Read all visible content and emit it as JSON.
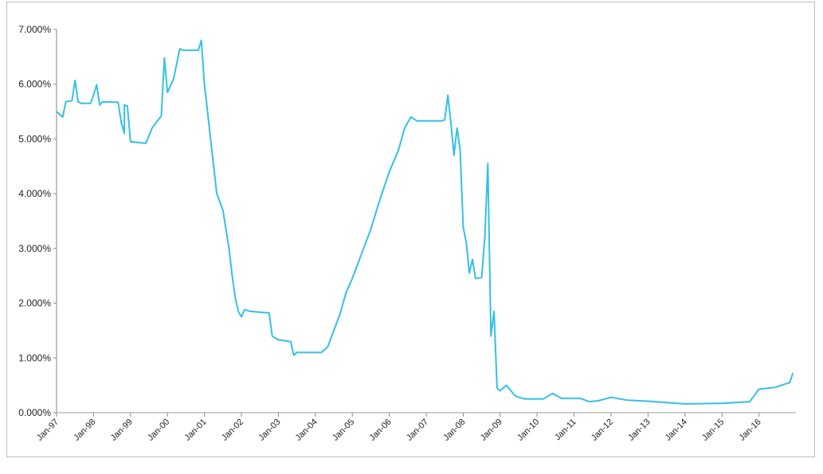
{
  "chart_data": {
    "type": "line",
    "title": "",
    "xlabel": "",
    "ylabel": "",
    "ylim": [
      0,
      7
    ],
    "xlim": [
      "1997-01",
      "2016-12"
    ],
    "grid": false,
    "line_color": "#35c0e6",
    "y_ticks": [
      "0.000%",
      "1.000%",
      "2.000%",
      "3.000%",
      "4.000%",
      "5.000%",
      "6.000%",
      "7.000%"
    ],
    "x_ticks": [
      "Jan-97",
      "Jan-98",
      "Jan-99",
      "Jan-00",
      "Jan-01",
      "Jan-02",
      "Jan-03",
      "Jan-04",
      "Jan-05",
      "Jan-06",
      "Jan-07",
      "Jan-08",
      "Jan-09",
      "Jan-10",
      "Jan-11",
      "Jan-12",
      "Jan-13",
      "Jan-14",
      "Jan-15",
      "Jan-16"
    ],
    "series": [
      {
        "points": [
          [
            "1997-01",
            5.5
          ],
          [
            "1997-03",
            5.4
          ],
          [
            "1997-04",
            5.68
          ],
          [
            "1997-06",
            5.7
          ],
          [
            "1997-07",
            6.07
          ],
          [
            "1997-08",
            5.68
          ],
          [
            "1997-09",
            5.65
          ],
          [
            "1997-12",
            5.65
          ],
          [
            "1998-01",
            5.8
          ],
          [
            "1998-02",
            5.99
          ],
          [
            "1998-03",
            5.62
          ],
          [
            "1998-04",
            5.68
          ],
          [
            "1998-09",
            5.67
          ],
          [
            "1998-10",
            5.3
          ],
          [
            "1998-11",
            5.1
          ],
          [
            "1998-11",
            5.62
          ],
          [
            "1998-12",
            5.6
          ],
          [
            "1999-01",
            4.95
          ],
          [
            "1999-06",
            4.92
          ],
          [
            "1999-08",
            5.2
          ],
          [
            "1999-10",
            5.35
          ],
          [
            "1999-11",
            5.42
          ],
          [
            "1999-12",
            6.48
          ],
          [
            "2000-01",
            5.85
          ],
          [
            "2000-03",
            6.1
          ],
          [
            "2000-05",
            6.65
          ],
          [
            "2000-06",
            6.62
          ],
          [
            "2000-11",
            6.62
          ],
          [
            "2000-12",
            6.8
          ],
          [
            "2001-01",
            6.0
          ],
          [
            "2001-02",
            5.5
          ],
          [
            "2001-03",
            5.0
          ],
          [
            "2001-04",
            4.5
          ],
          [
            "2001-05",
            4.0
          ],
          [
            "2001-07",
            3.7
          ],
          [
            "2001-09",
            3.0
          ],
          [
            "2001-10",
            2.5
          ],
          [
            "2001-11",
            2.1
          ],
          [
            "2001-12",
            1.85
          ],
          [
            "2002-01",
            1.75
          ],
          [
            "2002-02",
            1.88
          ],
          [
            "2002-04",
            1.85
          ],
          [
            "2002-10",
            1.82
          ],
          [
            "2002-11",
            1.4
          ],
          [
            "2003-01",
            1.33
          ],
          [
            "2003-05",
            1.3
          ],
          [
            "2003-06",
            1.05
          ],
          [
            "2003-07",
            1.1
          ],
          [
            "2004-03",
            1.1
          ],
          [
            "2004-05",
            1.2
          ],
          [
            "2004-07",
            1.5
          ],
          [
            "2004-09",
            1.8
          ],
          [
            "2004-11",
            2.2
          ],
          [
            "2005-01",
            2.45
          ],
          [
            "2005-04",
            2.9
          ],
          [
            "2005-07",
            3.35
          ],
          [
            "2005-10",
            3.9
          ],
          [
            "2006-01",
            4.4
          ],
          [
            "2006-04",
            4.8
          ],
          [
            "2006-06",
            5.2
          ],
          [
            "2006-08",
            5.4
          ],
          [
            "2006-10",
            5.33
          ],
          [
            "2007-06",
            5.33
          ],
          [
            "2007-07",
            5.35
          ],
          [
            "2007-08",
            5.8
          ],
          [
            "2007-09",
            5.3
          ],
          [
            "2007-10",
            4.7
          ],
          [
            "2007-11",
            5.2
          ],
          [
            "2007-12",
            4.8
          ],
          [
            "2008-01",
            3.4
          ],
          [
            "2008-02",
            3.1
          ],
          [
            "2008-03",
            2.55
          ],
          [
            "2008-04",
            2.8
          ],
          [
            "2008-05",
            2.45
          ],
          [
            "2008-07",
            2.47
          ],
          [
            "2008-08",
            3.2
          ],
          [
            "2008-09",
            4.55
          ],
          [
            "2008-10",
            1.4
          ],
          [
            "2008-11",
            1.85
          ],
          [
            "2008-12",
            0.45
          ],
          [
            "2009-01",
            0.4
          ],
          [
            "2009-03",
            0.5
          ],
          [
            "2009-06",
            0.3
          ],
          [
            "2009-09",
            0.25
          ],
          [
            "2010-03",
            0.25
          ],
          [
            "2010-06",
            0.35
          ],
          [
            "2010-09",
            0.26
          ],
          [
            "2011-03",
            0.26
          ],
          [
            "2011-06",
            0.2
          ],
          [
            "2011-09",
            0.22
          ],
          [
            "2012-01",
            0.28
          ],
          [
            "2012-06",
            0.23
          ],
          [
            "2013-01",
            0.21
          ],
          [
            "2014-01",
            0.16
          ],
          [
            "2015-01",
            0.17
          ],
          [
            "2015-10",
            0.2
          ],
          [
            "2016-01",
            0.43
          ],
          [
            "2016-06",
            0.46
          ],
          [
            "2016-11",
            0.55
          ],
          [
            "2016-12",
            0.72
          ]
        ]
      }
    ]
  }
}
